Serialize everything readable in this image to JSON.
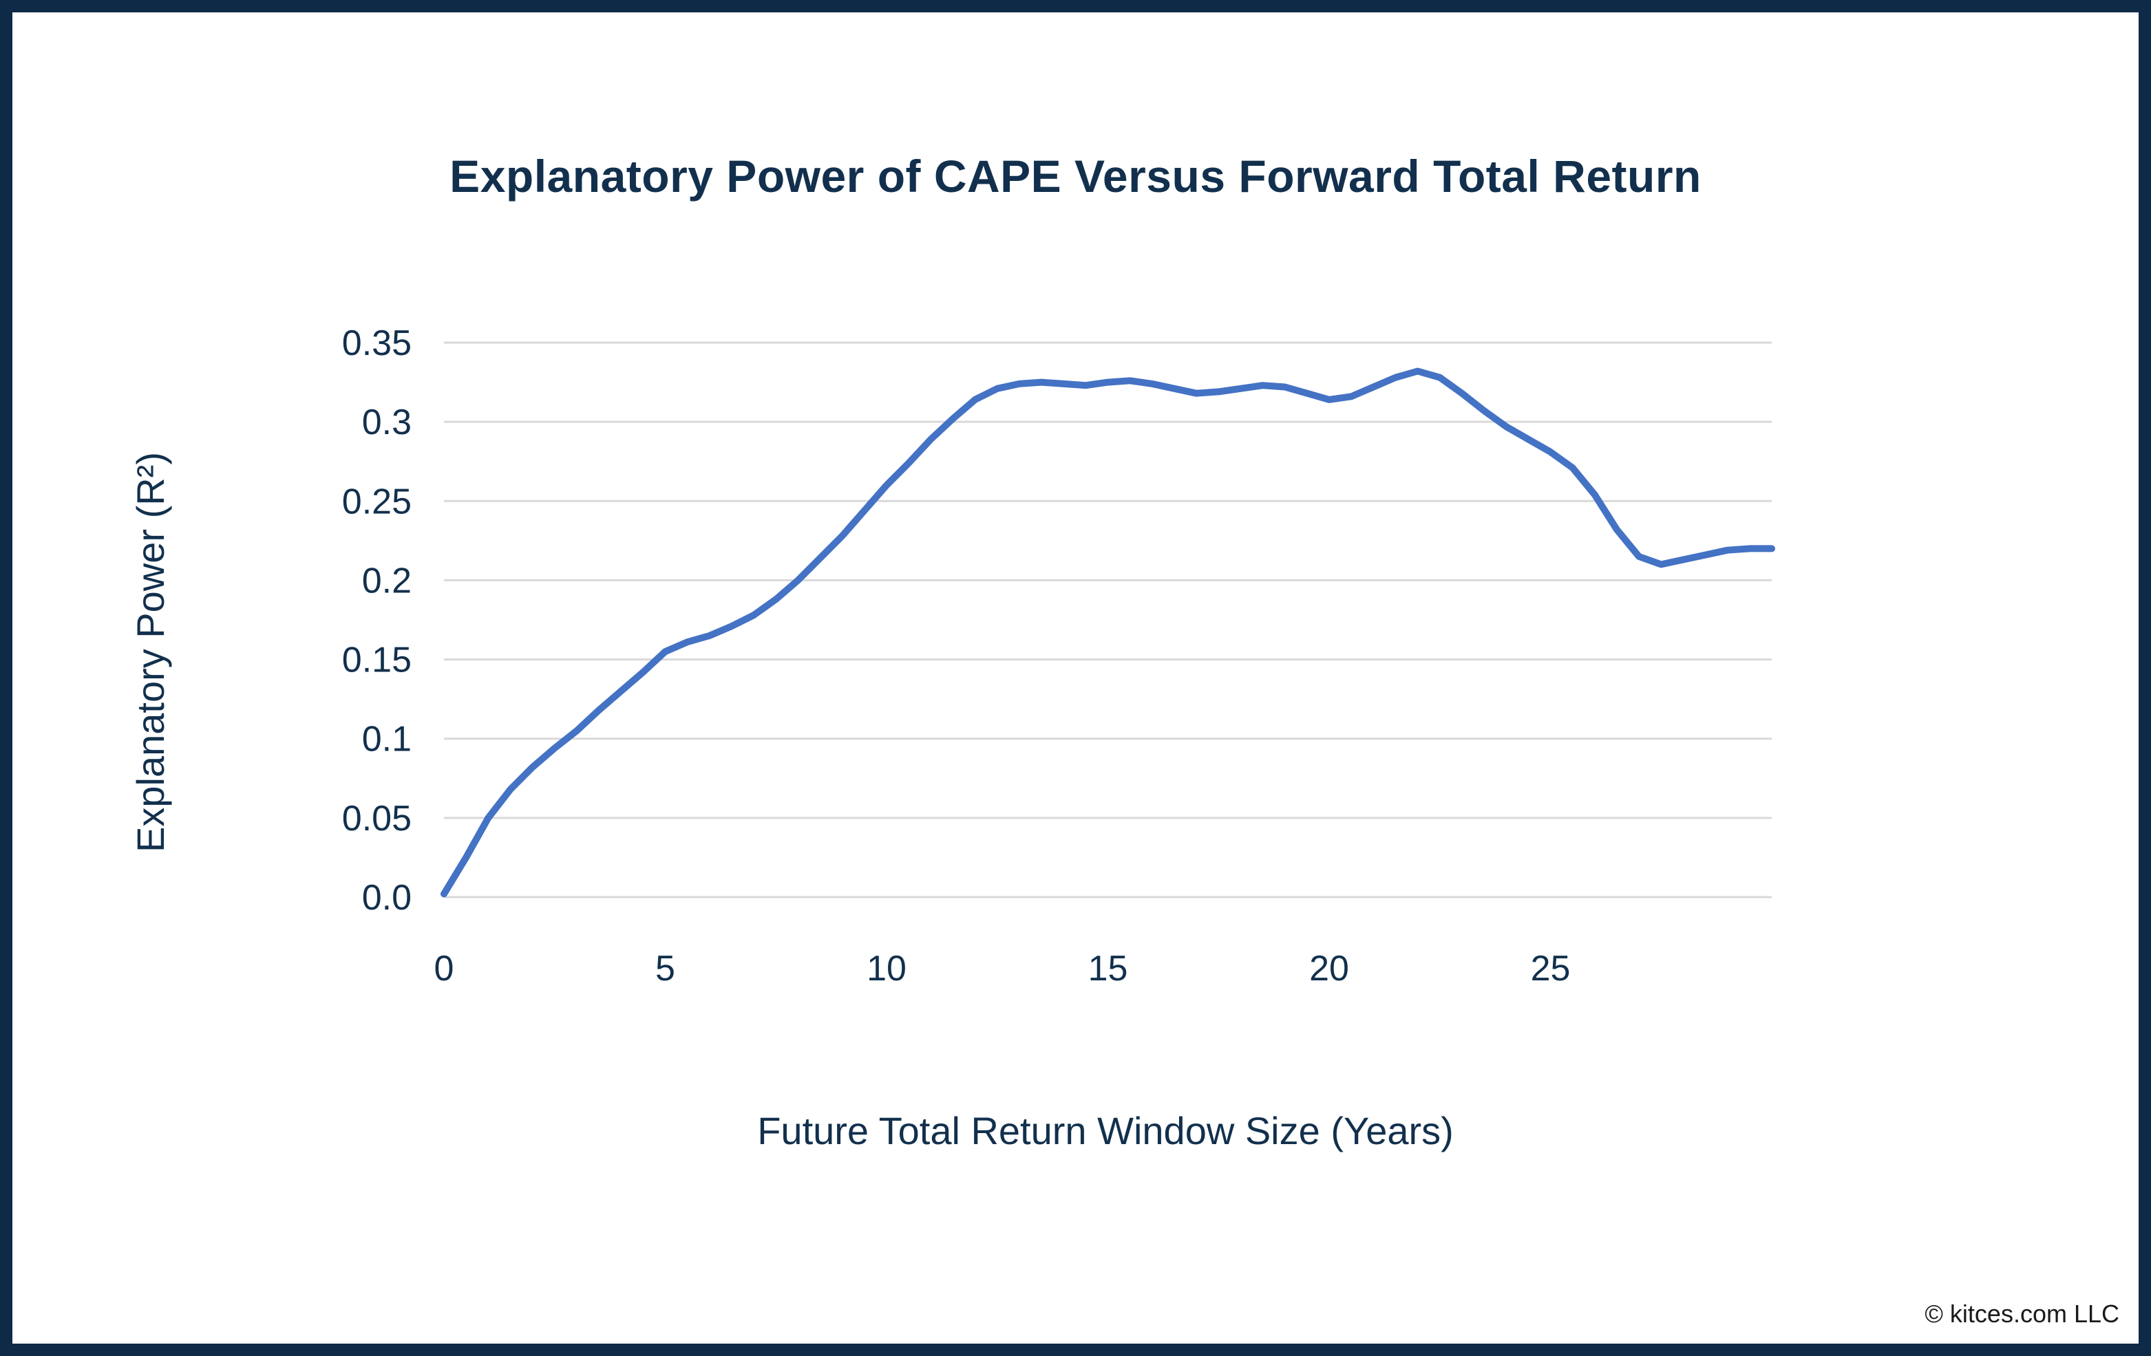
{
  "chart_data": {
    "type": "line",
    "title": "Explanatory Power of CAPE Versus Forward Total Return",
    "xlabel": "Future Total Return Window Size (Years)",
    "ylabel": "Explanatory Power (R²)",
    "xlim": [
      0,
      30
    ],
    "ylim": [
      0,
      0.35
    ],
    "x_ticks": [
      0,
      5,
      10,
      15,
      20,
      25
    ],
    "x_tick_labels": [
      "0",
      "5",
      "10",
      "15",
      "20",
      "25"
    ],
    "y_ticks": [
      0,
      0.05,
      0.1,
      0.15,
      0.2,
      0.25,
      0.3,
      0.35
    ],
    "y_tick_labels": [
      "0.0",
      "0.05",
      "0.1",
      "0.15",
      "0.2",
      "0.25",
      "0.3",
      "0.35"
    ],
    "grid": true,
    "legend": "none",
    "colors": {
      "series": "#4472c4",
      "text": "#12304d",
      "grid": "#d9d9d9",
      "frame": "#0e2a47"
    },
    "series": [
      {
        "x": [
          0,
          0.5,
          1,
          1.5,
          2,
          2.5,
          3,
          3.5,
          4,
          4.5,
          5,
          5.5,
          6,
          6.5,
          7,
          7.5,
          8,
          8.5,
          9,
          9.5,
          10,
          10.5,
          11,
          11.5,
          12,
          12.5,
          13,
          13.5,
          14,
          14.5,
          15,
          15.5,
          16,
          16.5,
          17,
          17.5,
          18,
          18.5,
          19,
          19.5,
          20,
          20.5,
          21,
          21.5,
          22,
          22.5,
          23,
          23.5,
          24,
          24.5,
          25,
          25.5,
          26,
          26.5,
          27,
          27.5,
          28,
          28.5,
          29,
          29.5,
          30
        ],
        "values": [
          0.002,
          0.025,
          0.05,
          0.068,
          0.082,
          0.094,
          0.105,
          0.118,
          0.13,
          0.142,
          0.155,
          0.161,
          0.165,
          0.171,
          0.178,
          0.188,
          0.2,
          0.214,
          0.228,
          0.244,
          0.26,
          0.274,
          0.289,
          0.302,
          0.314,
          0.321,
          0.324,
          0.325,
          0.324,
          0.323,
          0.325,
          0.326,
          0.324,
          0.321,
          0.318,
          0.319,
          0.321,
          0.323,
          0.322,
          0.318,
          0.314,
          0.316,
          0.322,
          0.328,
          0.332,
          0.328,
          0.318,
          0.307,
          0.297,
          0.289,
          0.281,
          0.271,
          0.254,
          0.232,
          0.215,
          0.21,
          0.213,
          0.216,
          0.219,
          0.22,
          0.22
        ]
      }
    ]
  },
  "credit": "© kitces.com LLC"
}
